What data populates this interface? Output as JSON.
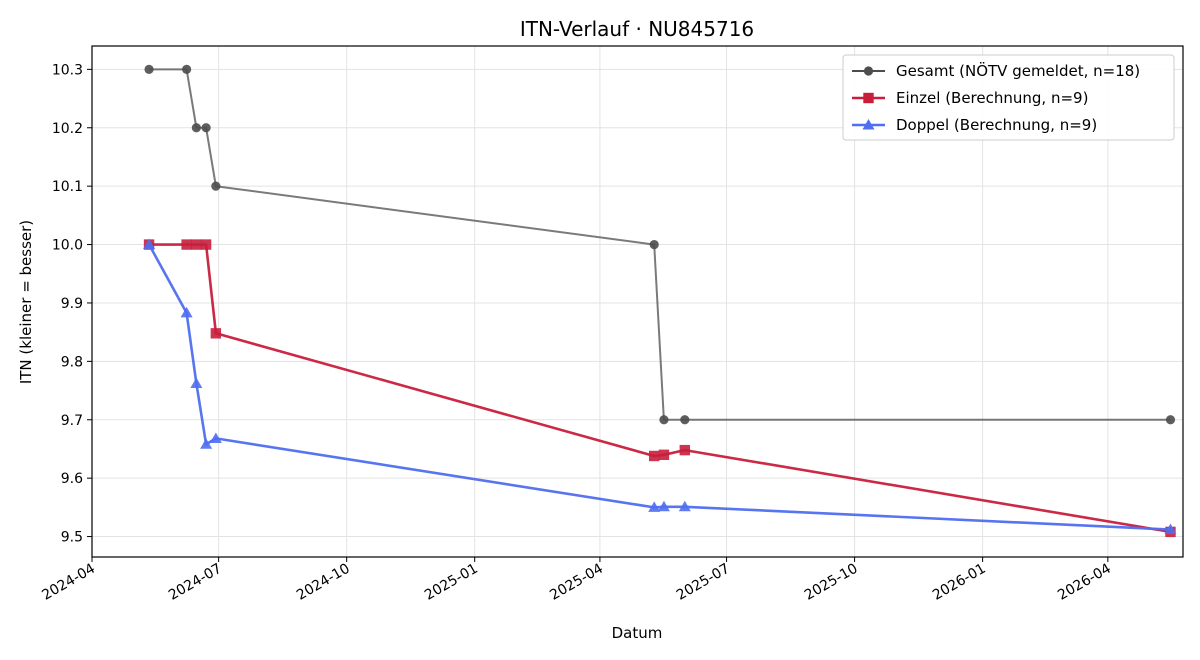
{
  "chart_data": {
    "type": "line",
    "title": "ITN-Verlauf · NU845716",
    "xlabel": "Datum",
    "ylabel": "ITN  (kleiner = besser)",
    "x_axis": "date",
    "xlim": [
      "2024-04-01",
      "2026-05-25"
    ],
    "ylim": [
      9.465,
      10.34
    ],
    "yticks": [
      9.5,
      9.6,
      9.7,
      9.8,
      9.9,
      10.0,
      10.1,
      10.2,
      10.3
    ],
    "ytick_labels": [
      "9.5",
      "9.6",
      "9.7",
      "9.8",
      "9.9",
      "10.0",
      "10.1",
      "10.2",
      "10.3"
    ],
    "xticks": [
      "2024-04-01",
      "2024-07-01",
      "2024-10-01",
      "2025-01-01",
      "2025-04-01",
      "2025-07-01",
      "2025-10-01",
      "2026-01-01",
      "2026-04-01"
    ],
    "xtick_labels": [
      "2024-04",
      "2024-07",
      "2024-10",
      "2025-01",
      "2025-04",
      "2025-07",
      "2025-10",
      "2026-01",
      "2026-04"
    ],
    "grid": true,
    "legend_position": "top-right",
    "series": [
      {
        "name": "Gesamt (NÖTV gemeldet, n=18)",
        "color": "#4d4d4d",
        "marker": "circle",
        "points": [
          {
            "x": "2024-05-12",
            "y": 10.3
          },
          {
            "x": "2024-06-08",
            "y": 10.3
          },
          {
            "x": "2024-06-15",
            "y": 10.2
          },
          {
            "x": "2024-06-22",
            "y": 10.2
          },
          {
            "x": "2024-06-29",
            "y": 10.1
          },
          {
            "x": "2025-05-10",
            "y": 10.0
          },
          {
            "x": "2025-05-17",
            "y": 9.7
          },
          {
            "x": "2025-06-01",
            "y": 9.7
          },
          {
            "x": "2026-05-16",
            "y": 9.7
          }
        ]
      },
      {
        "name": "Einzel (Berechnung, n=9)",
        "color": "#c81e3c",
        "marker": "square",
        "points": [
          {
            "x": "2024-05-12",
            "y": 10.0
          },
          {
            "x": "2024-06-08",
            "y": 10.0
          },
          {
            "x": "2024-06-15",
            "y": 10.0
          },
          {
            "x": "2024-06-22",
            "y": 10.0
          },
          {
            "x": "2024-06-29",
            "y": 9.848
          },
          {
            "x": "2025-05-10",
            "y": 9.638
          },
          {
            "x": "2025-05-17",
            "y": 9.64
          },
          {
            "x": "2025-06-01",
            "y": 9.648
          },
          {
            "x": "2026-05-16",
            "y": 9.508
          }
        ]
      },
      {
        "name": "Doppel (Berechnung, n=9)",
        "color": "#4f6ef0",
        "marker": "triangle",
        "points": [
          {
            "x": "2024-05-12",
            "y": 10.0
          },
          {
            "x": "2024-06-08",
            "y": 9.883
          },
          {
            "x": "2024-06-15",
            "y": 9.762
          },
          {
            "x": "2024-06-22",
            "y": 9.658
          },
          {
            "x": "2024-06-29",
            "y": 9.668
          },
          {
            "x": "2025-05-10",
            "y": 9.55
          },
          {
            "x": "2025-05-17",
            "y": 9.551
          },
          {
            "x": "2025-06-01",
            "y": 9.551
          },
          {
            "x": "2026-05-16",
            "y": 9.512
          }
        ]
      }
    ]
  }
}
